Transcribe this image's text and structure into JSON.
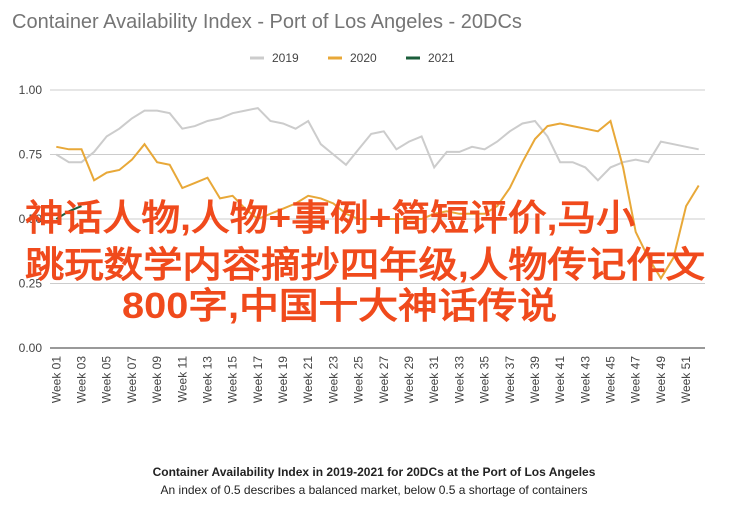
{
  "chart_data": {
    "type": "line",
    "title": "Container Availability Index - Port of Los Angeles - 20DCs",
    "caption": "Container Availability Index in 2019-2021 for 20DCs at the Port of Los Angeles",
    "subcaption": "An index of 0.5 describes a balanced market, below 0.5 a shortage of containers",
    "overlay_text": [
      "神话人物,人物+事例+简短评价,马小",
      "跳玩数学内容摘抄四年级,人物传记作文",
      "800字,中国十大神话传说"
    ],
    "categories": [
      "Week 01",
      null,
      "Week 03",
      null,
      "Week 05",
      null,
      "Week 07",
      null,
      "Week 09",
      null,
      "Week 11",
      null,
      "Week 13",
      null,
      "Week 15",
      null,
      "Week 17",
      null,
      "Week 19",
      null,
      "Week 21",
      null,
      "Week 23",
      null,
      "Week 25",
      null,
      "Week 27",
      null,
      "Week 29",
      null,
      "Week 31",
      null,
      "Week 33",
      null,
      "Week 35",
      null,
      "Week 37",
      null,
      "Week 39",
      null,
      "Week 41",
      null,
      "Week 43",
      null,
      "Week 45",
      null,
      "Week 47",
      null,
      "Week 49",
      null,
      "Week 51",
      null
    ],
    "series": [
      {
        "name": "2019",
        "color": "#cccccc",
        "values": [
          0.75,
          0.72,
          0.72,
          0.76,
          0.82,
          0.85,
          0.89,
          0.92,
          0.92,
          0.91,
          0.85,
          0.86,
          0.88,
          0.89,
          0.91,
          0.92,
          0.93,
          0.88,
          0.87,
          0.85,
          0.88,
          0.79,
          0.75,
          0.71,
          0.77,
          0.83,
          0.84,
          0.77,
          0.8,
          0.82,
          0.7,
          0.76,
          0.76,
          0.78,
          0.77,
          0.8,
          0.84,
          0.87,
          0.88,
          0.82,
          0.72,
          0.72,
          0.7,
          0.65,
          0.7,
          0.72,
          0.73,
          0.72,
          0.8,
          0.79,
          0.78,
          0.77
        ]
      },
      {
        "name": "2020",
        "color": "#e8a838",
        "values": [
          0.78,
          0.77,
          0.77,
          0.65,
          0.68,
          0.69,
          0.73,
          0.79,
          0.72,
          0.71,
          0.62,
          0.64,
          0.66,
          0.58,
          0.59,
          0.54,
          0.5,
          0.52,
          0.54,
          0.56,
          0.59,
          0.58,
          0.56,
          0.52,
          0.5,
          0.5,
          0.5,
          0.5,
          0.5,
          0.5,
          0.52,
          0.53,
          0.52,
          0.52,
          0.52,
          0.55,
          0.62,
          0.72,
          0.81,
          0.86,
          0.87,
          0.86,
          0.85,
          0.84,
          0.88,
          0.7,
          0.45,
          0.35,
          0.27,
          0.35,
          0.55,
          0.63
        ]
      },
      {
        "name": "2021",
        "color": "#1b5e3b",
        "values": [
          0.5,
          0.53,
          0.55,
          null,
          null,
          null,
          null,
          null,
          null,
          null,
          null,
          null,
          null,
          null,
          null,
          null,
          null,
          null,
          null,
          null,
          null,
          null,
          null,
          null,
          null,
          null,
          null,
          null,
          null,
          null,
          null,
          null,
          null,
          null,
          null,
          null,
          null,
          null,
          null,
          null,
          null,
          null,
          null,
          null,
          null,
          null,
          null,
          null,
          null,
          null,
          null,
          null
        ]
      }
    ],
    "ylim": [
      0,
      1
    ],
    "yticks": [
      {
        "value": 0,
        "label": "0.00"
      },
      {
        "value": 0.25,
        "label": "0.25"
      },
      {
        "value": 0.5,
        "label": "0.50"
      },
      {
        "value": 0.75,
        "label": "0.75"
      },
      {
        "value": 1,
        "label": "1.00"
      }
    ],
    "grid": true,
    "legend": "top"
  }
}
